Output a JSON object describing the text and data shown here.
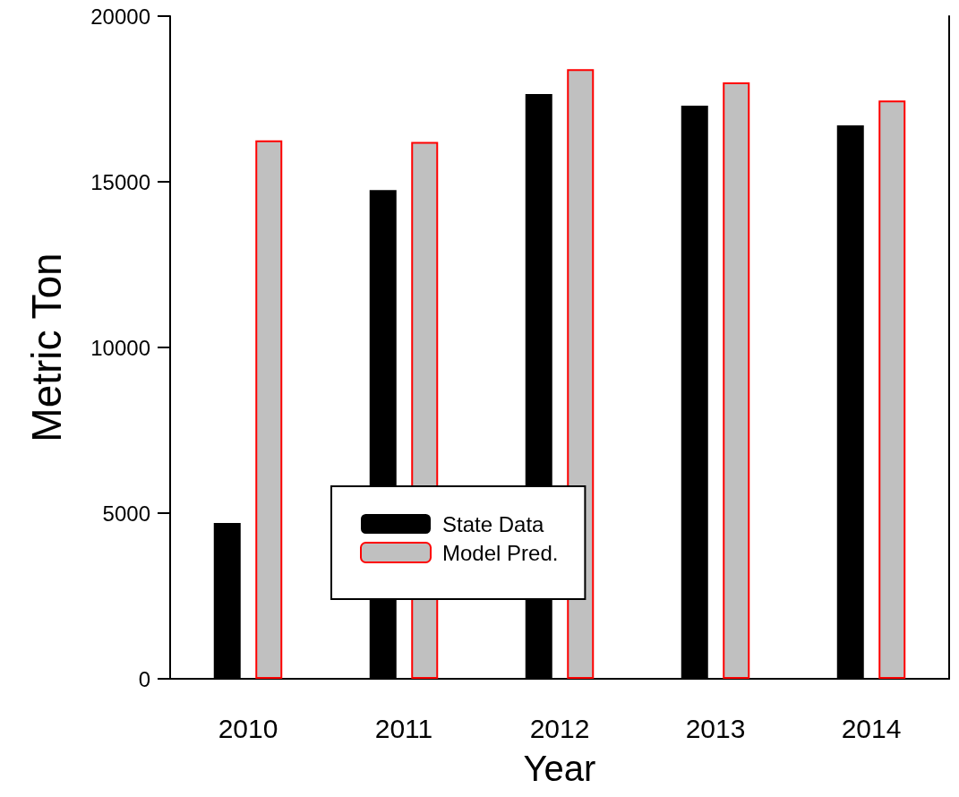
{
  "chart_data": {
    "type": "bar",
    "xlabel": "Year",
    "ylabel": "Metric Ton",
    "categories": [
      "2010",
      "2011",
      "2012",
      "2013",
      "2014"
    ],
    "series": [
      {
        "name": "State Data",
        "color": "#000000",
        "values": [
          4700,
          14750,
          17650,
          17300,
          16700
        ]
      },
      {
        "name": "Model Pred.",
        "color": "#c0c0c0",
        "values": [
          16250,
          16200,
          18400,
          18000,
          17450
        ]
      }
    ],
    "ylim": [
      0,
      20000
    ],
    "yticks": [
      0,
      5000,
      10000,
      15000,
      20000
    ],
    "grid": false,
    "legend": "bottom"
  }
}
